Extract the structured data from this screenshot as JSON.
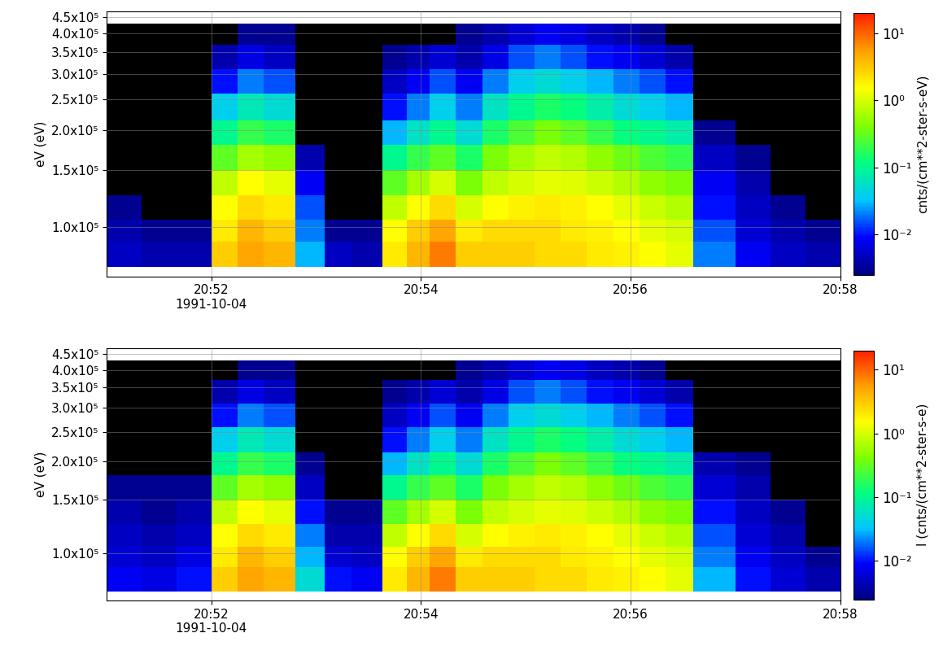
{
  "chart_data": [
    {
      "type": "heatmap",
      "x": [
        "20:51:00",
        "20:51:20",
        "20:51:40",
        "20:52:00",
        "20:52:15",
        "20:52:30",
        "20:52:48",
        "20:53:05",
        "20:53:20",
        "20:53:38",
        "20:53:52",
        "20:54:05",
        "20:54:20",
        "20:54:35",
        "20:54:50",
        "20:55:05",
        "20:55:20",
        "20:55:35",
        "20:55:50",
        "20:56:05",
        "20:56:20",
        "20:56:36",
        "20:57:00",
        "20:57:20",
        "20:57:40",
        "20:58:00"
      ],
      "y": [
        75000,
        90000,
        105000,
        125000,
        150000,
        180000,
        215000,
        260000,
        310000,
        370000,
        430000
      ],
      "cells": [
        [
          0.005,
          0.004,
          0.003,
          null,
          null,
          null,
          null,
          null,
          null,
          null
        ],
        [
          0.004,
          0.003,
          null,
          null,
          null,
          null,
          null,
          null,
          null,
          null
        ],
        [
          0.004,
          0.003,
          null,
          null,
          null,
          null,
          null,
          null,
          null,
          null
        ],
        [
          3,
          2,
          1.5,
          0.8,
          0.3,
          0.1,
          0.04,
          0.01,
          0.004,
          null
        ],
        [
          5,
          4,
          2.5,
          1.5,
          0.6,
          0.2,
          0.07,
          0.02,
          0.007,
          0.003
        ],
        [
          4,
          3,
          2,
          1.2,
          0.5,
          0.15,
          0.05,
          0.015,
          0.005,
          0.003
        ],
        [
          0.03,
          0.02,
          0.015,
          0.008,
          0.004,
          null,
          null,
          null,
          null,
          null
        ],
        [
          0.005,
          0.003,
          null,
          null,
          null,
          null,
          null,
          null,
          null,
          null
        ],
        [
          0.004,
          0.003,
          null,
          null,
          null,
          null,
          null,
          null,
          null,
          null
        ],
        [
          2,
          1.5,
          0.8,
          0.3,
          0.1,
          0.03,
          0.01,
          0.005,
          0.003,
          null
        ],
        [
          4,
          3,
          1.5,
          0.6,
          0.2,
          0.06,
          0.02,
          0.008,
          0.004,
          null
        ],
        [
          8,
          5,
          2.5,
          1.0,
          0.3,
          0.1,
          0.04,
          0.015,
          0.006,
          null
        ],
        [
          3,
          2,
          1,
          0.4,
          0.15,
          0.05,
          0.02,
          0.008,
          0.004,
          0.003
        ],
        [
          3,
          2.5,
          1.5,
          0.8,
          0.4,
          0.15,
          0.06,
          0.02,
          0.007,
          0.004
        ],
        [
          3,
          2.5,
          1.8,
          1.0,
          0.6,
          0.25,
          0.1,
          0.04,
          0.015,
          0.006
        ],
        [
          2.5,
          2.5,
          2,
          1.2,
          0.8,
          0.4,
          0.15,
          0.05,
          0.02,
          0.008
        ],
        [
          2.5,
          2,
          1.8,
          1.1,
          0.7,
          0.3,
          0.12,
          0.04,
          0.015,
          0.007
        ],
        [
          2,
          1.8,
          1.5,
          0.9,
          0.5,
          0.2,
          0.08,
          0.03,
          0.01,
          0.005
        ],
        [
          1.8,
          1.5,
          1.2,
          0.7,
          0.35,
          0.12,
          0.05,
          0.02,
          0.008,
          0.004
        ],
        [
          1.5,
          1.2,
          0.9,
          0.5,
          0.25,
          0.1,
          0.04,
          0.015,
          0.006,
          0.003
        ],
        [
          1.2,
          1.0,
          0.7,
          0.4,
          0.2,
          0.08,
          0.03,
          0.01,
          0.004,
          null
        ],
        [
          0.02,
          0.015,
          0.01,
          0.008,
          0.005,
          0.003,
          null,
          null,
          null,
          null
        ],
        [
          0.008,
          0.006,
          0.005,
          0.004,
          0.003,
          null,
          null,
          null,
          null,
          null
        ],
        [
          0.005,
          0.004,
          0.003,
          null,
          null,
          null,
          null,
          null,
          null,
          null
        ],
        [
          0.004,
          0.003,
          null,
          null,
          null,
          null,
          null,
          null,
          null,
          null
        ]
      ],
      "xlim": [
        "20:51:00",
        "20:58:00"
      ],
      "xticks": [
        {
          "value": "20:52:00",
          "label": "20:52\n1991-10-04"
        },
        {
          "value": "20:54:00",
          "label": "20:54"
        },
        {
          "value": "20:56:00",
          "label": "20:56"
        },
        {
          "value": "20:58:00",
          "label": "20:58"
        }
      ],
      "ylim": [
        70000,
        470000
      ],
      "yticks": [
        {
          "value": 100000,
          "label": "1.0x10⁵"
        },
        {
          "value": 150000,
          "label": "1.5x10⁵"
        },
        {
          "value": 200000,
          "label": "2.0x10⁵"
        },
        {
          "value": 250000,
          "label": "2.5x10⁵"
        },
        {
          "value": 300000,
          "label": "3.0x10⁵"
        },
        {
          "value": 350000,
          "label": "3.5x10⁵"
        },
        {
          "value": 400000,
          "label": "4.0x10⁵"
        },
        {
          "value": 450000,
          "label": "4.5x10⁵"
        }
      ],
      "y_label": "eV (eV)",
      "log": true,
      "grid": true,
      "colorbar": {
        "label": "cnts/(cm**2-ster-s-eV)",
        "range": [
          0.0025,
          20
        ],
        "ticks": [
          {
            "value": 0.01,
            "label": "10⁻²"
          },
          {
            "value": 0.1,
            "label": "10⁻¹"
          },
          {
            "value": 1,
            "label": "10⁰"
          },
          {
            "value": 10,
            "label": "10¹"
          }
        ]
      }
    },
    {
      "type": "heatmap",
      "x": [
        "20:51:00",
        "20:51:20",
        "20:51:40",
        "20:52:00",
        "20:52:15",
        "20:52:30",
        "20:52:48",
        "20:53:05",
        "20:53:20",
        "20:53:38",
        "20:53:52",
        "20:54:05",
        "20:54:20",
        "20:54:35",
        "20:54:50",
        "20:55:05",
        "20:55:20",
        "20:55:35",
        "20:55:50",
        "20:56:05",
        "20:56:20",
        "20:56:36",
        "20:57:00",
        "20:57:20",
        "20:57:40",
        "20:58:00"
      ],
      "y": [
        75000,
        90000,
        105000,
        125000,
        150000,
        180000,
        215000,
        260000,
        310000,
        370000,
        430000
      ],
      "cells": [
        [
          0.008,
          0.006,
          0.005,
          0.004,
          0.003,
          null,
          null,
          null,
          null,
          null
        ],
        [
          0.007,
          0.005,
          0.004,
          0.003,
          0.003,
          null,
          null,
          null,
          null,
          null
        ],
        [
          0.01,
          0.007,
          0.005,
          0.004,
          0.003,
          null,
          null,
          null,
          null,
          null
        ],
        [
          3,
          2,
          1.5,
          0.8,
          0.3,
          0.1,
          0.04,
          0.01,
          0.004,
          null
        ],
        [
          5,
          4,
          2.5,
          1.5,
          0.6,
          0.2,
          0.07,
          0.02,
          0.007,
          0.003
        ],
        [
          4,
          3,
          2,
          1.2,
          0.5,
          0.15,
          0.05,
          0.015,
          0.005,
          0.003
        ],
        [
          0.05,
          0.03,
          0.02,
          0.01,
          0.005,
          0.003,
          null,
          null,
          null,
          null
        ],
        [
          0.01,
          0.006,
          0.004,
          0.003,
          null,
          null,
          null,
          null,
          null,
          null
        ],
        [
          0.008,
          0.005,
          0.004,
          0.003,
          null,
          null,
          null,
          null,
          null,
          null
        ],
        [
          2,
          1.5,
          0.8,
          0.3,
          0.1,
          0.03,
          0.01,
          0.005,
          0.003,
          null
        ],
        [
          4,
          3,
          1.5,
          0.6,
          0.2,
          0.06,
          0.02,
          0.008,
          0.004,
          null
        ],
        [
          8,
          5,
          2.5,
          1.0,
          0.3,
          0.1,
          0.04,
          0.015,
          0.006,
          null
        ],
        [
          3,
          2,
          1,
          0.4,
          0.15,
          0.05,
          0.02,
          0.008,
          0.004,
          0.003
        ],
        [
          3,
          2.5,
          1.5,
          0.8,
          0.4,
          0.15,
          0.06,
          0.02,
          0.007,
          0.004
        ],
        [
          3,
          2.5,
          1.8,
          1.0,
          0.6,
          0.25,
          0.1,
          0.04,
          0.015,
          0.006
        ],
        [
          2.5,
          2.5,
          2,
          1.2,
          0.8,
          0.4,
          0.15,
          0.05,
          0.02,
          0.008
        ],
        [
          2.5,
          2,
          1.8,
          1.1,
          0.7,
          0.3,
          0.12,
          0.04,
          0.015,
          0.007
        ],
        [
          2,
          1.8,
          1.5,
          0.9,
          0.5,
          0.2,
          0.08,
          0.03,
          0.01,
          0.005
        ],
        [
          1.8,
          1.5,
          1.2,
          0.7,
          0.35,
          0.12,
          0.05,
          0.02,
          0.008,
          0.004
        ],
        [
          1.5,
          1.2,
          0.9,
          0.5,
          0.25,
          0.1,
          0.04,
          0.015,
          0.006,
          0.003
        ],
        [
          1.2,
          1.0,
          0.7,
          0.4,
          0.2,
          0.08,
          0.03,
          0.01,
          0.004,
          null
        ],
        [
          0.03,
          0.02,
          0.015,
          0.01,
          0.006,
          0.004,
          null,
          null,
          null,
          null
        ],
        [
          0.01,
          0.008,
          0.006,
          0.005,
          0.004,
          0.003,
          null,
          null,
          null,
          null
        ],
        [
          0.006,
          0.005,
          0.004,
          0.003,
          null,
          null,
          null,
          null,
          null,
          null
        ],
        [
          0.004,
          0.003,
          null,
          null,
          null,
          null,
          null,
          null,
          null,
          null
        ]
      ],
      "xlim": [
        "20:51:00",
        "20:58:00"
      ],
      "xticks": [
        {
          "value": "20:52:00",
          "label": "20:52\n1991-10-04"
        },
        {
          "value": "20:54:00",
          "label": "20:54"
        },
        {
          "value": "20:56:00",
          "label": "20:56"
        },
        {
          "value": "20:58:00",
          "label": "20:58"
        }
      ],
      "ylim": [
        70000,
        470000
      ],
      "yticks": [
        {
          "value": 100000,
          "label": "1.0x10⁵"
        },
        {
          "value": 150000,
          "label": "1.5x10⁵"
        },
        {
          "value": 200000,
          "label": "2.0x10⁵"
        },
        {
          "value": 250000,
          "label": "2.5x10⁵"
        },
        {
          "value": 300000,
          "label": "3.0x10⁵"
        },
        {
          "value": 350000,
          "label": "3.5x10⁵"
        },
        {
          "value": 400000,
          "label": "4.0x10⁵"
        },
        {
          "value": 450000,
          "label": "4.5x10⁵"
        }
      ],
      "y_label": "eV (eV)",
      "log": true,
      "grid": true,
      "colorbar": {
        "label": "I (cnts/(cm**2-ster-s-e)",
        "range": [
          0.0025,
          20
        ],
        "ticks": [
          {
            "value": 0.01,
            "label": "10⁻²"
          },
          {
            "value": 0.1,
            "label": "10⁻¹"
          },
          {
            "value": 1,
            "label": "10⁰"
          },
          {
            "value": 10,
            "label": "10¹"
          }
        ]
      }
    }
  ]
}
